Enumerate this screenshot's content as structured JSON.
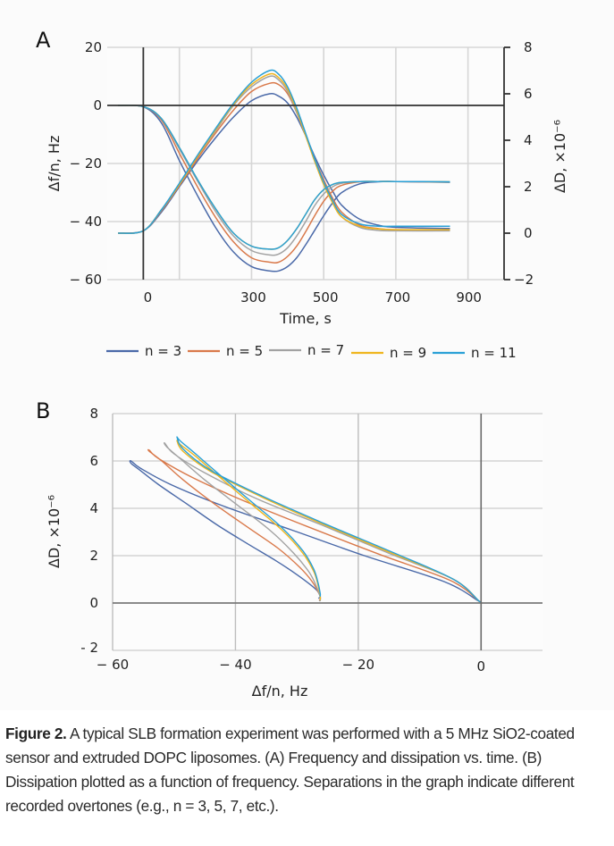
{
  "figure": {
    "caption_label": "Figure 2.",
    "caption_text": " A typical SLB formation experiment was performed with a 5 MHz SiO2-coated sensor and extruded DOPC liposomes. (A) Frequency and dissipation vs. time. (B) Dissipation plotted as a function of frequency. Separations in the graph indicate different recorded overtones (e.g., n = 3, 5, 7, etc.)."
  },
  "chart_data": [
    {
      "panel": "A",
      "type": "line",
      "title": "",
      "xlabel": "Time, s",
      "ylabel": "Δf/n, Hz",
      "y2label": "ΔD, ×10⁻⁶",
      "xlim": [
        -100,
        1000
      ],
      "ylim": [
        -60,
        20
      ],
      "y2lim": [
        -2,
        8
      ],
      "x_gridlines": [
        100,
        300,
        500,
        700,
        900
      ],
      "x_ticks": [
        {
          "value": 0,
          "label": "0"
        },
        {
          "value": 300,
          "label": "300"
        },
        {
          "value": 500,
          "label": "500"
        },
        {
          "value": 700,
          "label": "700"
        },
        {
          "value": 900,
          "label": "900"
        }
      ],
      "y_ticks": [
        {
          "value": 20,
          "label": "20"
        },
        {
          "value": 0,
          "label": "0"
        },
        {
          "value": -20,
          "label": "− 20"
        },
        {
          "value": -40,
          "label": "− 40"
        },
        {
          "value": -60,
          "label": "− 60"
        }
      ],
      "y2_ticks": [
        {
          "value": 8,
          "label": "8"
        },
        {
          "value": 6,
          "label": "6"
        },
        {
          "value": 4,
          "label": "4"
        },
        {
          "value": 2,
          "label": "2"
        },
        {
          "value": 0,
          "label": "0"
        },
        {
          "value": -2,
          "label": "−2"
        }
      ],
      "grid": true,
      "legend_position": "bottom",
      "time": [
        -70,
        0,
        50,
        100,
        150,
        200,
        250,
        300,
        350,
        375,
        400,
        425,
        450,
        475,
        500,
        525,
        550,
        600,
        650,
        700,
        850
      ],
      "series": [
        {
          "name": "n = 3",
          "color": "#4a69a8",
          "df": [
            0,
            -0.5,
            -6,
            -19,
            -31,
            -42,
            -50.5,
            -55.5,
            -57,
            -57,
            -55.5,
            -52.5,
            -48,
            -43,
            -38,
            -33.5,
            -30,
            -27,
            -26.3,
            -26.2,
            -26.5
          ],
          "dD": [
            0,
            0.1,
            0.9,
            2.0,
            3.1,
            4.1,
            5.0,
            5.7,
            6.0,
            5.9,
            5.6,
            5.0,
            4.2,
            3.3,
            2.5,
            1.8,
            1.2,
            0.6,
            0.35,
            0.25,
            0.2
          ]
        },
        {
          "name": "n = 5",
          "color": "#d9794a",
          "df": [
            0,
            -0.4,
            -5,
            -16.5,
            -28,
            -38.5,
            -47,
            -52.5,
            -54,
            -54,
            -52,
            -48.5,
            -43.5,
            -38,
            -33,
            -29.5,
            -27.5,
            -26.3,
            -26.2,
            -26.2,
            -26.4
          ],
          "dD": [
            0,
            0.1,
            0.95,
            2.05,
            3.2,
            4.3,
            5.3,
            6.1,
            6.45,
            6.4,
            6.0,
            5.2,
            4.2,
            3.2,
            2.3,
            1.5,
            0.9,
            0.35,
            0.2,
            0.15,
            0.12
          ]
        },
        {
          "name": "n = 7",
          "color": "#a2a2a2",
          "df": [
            0,
            -0.4,
            -4.5,
            -15,
            -26,
            -36.5,
            -45,
            -50,
            -51.5,
            -51.2,
            -49,
            -45,
            -40,
            -34.5,
            -30.5,
            -28,
            -26.8,
            -26.2,
            -26.2,
            -26.2,
            -26.4
          ],
          "dD": [
            0,
            0.1,
            1.0,
            2.1,
            3.3,
            4.4,
            5.5,
            6.3,
            6.75,
            6.6,
            6.1,
            5.2,
            4.2,
            3.1,
            2.1,
            1.3,
            0.7,
            0.25,
            0.12,
            0.1,
            0.1
          ]
        },
        {
          "name": "n = 9",
          "color": "#efb51e",
          "df": [
            0,
            -0.4,
            -4.5,
            -14.5,
            -25.5,
            -35.5,
            -44,
            -48.5,
            -49.5,
            -49,
            -46.5,
            -42.5,
            -37.5,
            -32.5,
            -29,
            -27.2,
            -26.5,
            -26.2,
            -26.2,
            -26.2,
            -26.3
          ],
          "dD": [
            0,
            0.1,
            1.0,
            2.1,
            3.3,
            4.45,
            5.55,
            6.4,
            6.85,
            6.7,
            6.2,
            5.3,
            4.2,
            3.1,
            2.1,
            1.3,
            0.7,
            0.3,
            0.18,
            0.15,
            0.15
          ]
        },
        {
          "name": "n = 11",
          "color": "#2aa0d6",
          "df": [
            0,
            -0.4,
            -4.5,
            -14.5,
            -25.5,
            -35.5,
            -44,
            -48.5,
            -49.5,
            -49,
            -46.5,
            -42.5,
            -37.5,
            -32.5,
            -29,
            -27.2,
            -26.5,
            -26.2,
            -26.2,
            -26.2,
            -26.3
          ],
          "dD": [
            0,
            0.1,
            1.0,
            2.15,
            3.35,
            4.5,
            5.6,
            6.5,
            7.0,
            6.85,
            6.3,
            5.4,
            4.3,
            3.2,
            2.2,
            1.4,
            0.8,
            0.4,
            0.3,
            0.3,
            0.3
          ]
        }
      ]
    },
    {
      "panel": "B",
      "type": "line",
      "title": "",
      "xlabel": "Δf/n, Hz",
      "ylabel": "ΔD, ×10⁻⁶",
      "xlim": [
        -60,
        10
      ],
      "ylim": [
        -2,
        8
      ],
      "x_ticks": [
        {
          "value": -60,
          "label": "− 60"
        },
        {
          "value": -40,
          "label": "− 40"
        },
        {
          "value": -20,
          "label": "− 20"
        },
        {
          "value": 0,
          "label": "0"
        }
      ],
      "y_ticks": [
        {
          "value": 8,
          "label": "8"
        },
        {
          "value": 6,
          "label": "6"
        },
        {
          "value": 4,
          "label": "4"
        },
        {
          "value": 2,
          "label": "2"
        },
        {
          "value": 0,
          "label": "0"
        },
        {
          "value": -2,
          "label": "- 2"
        }
      ],
      "grid": true,
      "legend_position": "none",
      "series_note": "Parametric plot of ΔD vs Δf/n using the same time-series as panel A",
      "series": [
        {
          "name": "n = 3",
          "color": "#4a69a8",
          "points": [
            [
              0,
              0
            ],
            [
              -0.5,
              0.1
            ],
            [
              -6,
              0.9
            ],
            [
              -19,
              2.0
            ],
            [
              -31,
              3.1
            ],
            [
              -42,
              4.1
            ],
            [
              -50.5,
              5.0
            ],
            [
              -55.5,
              5.7
            ],
            [
              -57,
              6.0
            ],
            [
              -57,
              5.9
            ],
            [
              -55.5,
              5.6
            ],
            [
              -52.5,
              5.0
            ],
            [
              -48,
              4.2
            ],
            [
              -43,
              3.3
            ],
            [
              -38,
              2.5
            ],
            [
              -33.5,
              1.8
            ],
            [
              -30,
              1.2
            ],
            [
              -27,
              0.6
            ],
            [
              -26.3,
              0.35
            ],
            [
              -26.2,
              0.25
            ],
            [
              -26.5,
              0.2
            ]
          ]
        },
        {
          "name": "n = 5",
          "color": "#d9794a",
          "points": [
            [
              0,
              0
            ],
            [
              -0.4,
              0.1
            ],
            [
              -5,
              0.95
            ],
            [
              -16.5,
              2.05
            ],
            [
              -28,
              3.2
            ],
            [
              -38.5,
              4.3
            ],
            [
              -47,
              5.3
            ],
            [
              -52.5,
              6.1
            ],
            [
              -54,
              6.45
            ],
            [
              -54,
              6.4
            ],
            [
              -52,
              6.0
            ],
            [
              -48.5,
              5.2
            ],
            [
              -43.5,
              4.2
            ],
            [
              -38,
              3.2
            ],
            [
              -33,
              2.3
            ],
            [
              -29.5,
              1.5
            ],
            [
              -27.5,
              0.9
            ],
            [
              -26.3,
              0.35
            ],
            [
              -26.2,
              0.2
            ],
            [
              -26.2,
              0.15
            ],
            [
              -26.4,
              0.12
            ]
          ]
        },
        {
          "name": "n = 7",
          "color": "#a2a2a2",
          "points": [
            [
              0,
              0
            ],
            [
              -0.4,
              0.1
            ],
            [
              -4.5,
              1.0
            ],
            [
              -15,
              2.1
            ],
            [
              -26,
              3.3
            ],
            [
              -36.5,
              4.4
            ],
            [
              -45,
              5.5
            ],
            [
              -50,
              6.3
            ],
            [
              -51.5,
              6.75
            ],
            [
              -51.2,
              6.6
            ],
            [
              -49,
              6.1
            ],
            [
              -45,
              5.2
            ],
            [
              -40,
              4.2
            ],
            [
              -34.5,
              3.1
            ],
            [
              -30.5,
              2.1
            ],
            [
              -28,
              1.3
            ],
            [
              -26.8,
              0.7
            ],
            [
              -26.2,
              0.25
            ],
            [
              -26.2,
              0.12
            ],
            [
              -26.2,
              0.1
            ],
            [
              -26.4,
              0.1
            ]
          ]
        },
        {
          "name": "n = 9",
          "color": "#efb51e",
          "points": [
            [
              0,
              0
            ],
            [
              -0.4,
              0.1
            ],
            [
              -4.5,
              1.0
            ],
            [
              -14.5,
              2.1
            ],
            [
              -25.5,
              3.3
            ],
            [
              -35.5,
              4.45
            ],
            [
              -44,
              5.55
            ],
            [
              -48.5,
              6.4
            ],
            [
              -49.5,
              6.85
            ],
            [
              -49,
              6.7
            ],
            [
              -46.5,
              6.2
            ],
            [
              -42.5,
              5.3
            ],
            [
              -37.5,
              4.2
            ],
            [
              -32.5,
              3.1
            ],
            [
              -29,
              2.1
            ],
            [
              -27.2,
              1.3
            ],
            [
              -26.5,
              0.7
            ],
            [
              -26.2,
              0.3
            ],
            [
              -26.2,
              0.18
            ],
            [
              -26.2,
              0.15
            ],
            [
              -26.3,
              0.15
            ]
          ]
        },
        {
          "name": "n = 11",
          "color": "#2aa0d6",
          "points": [
            [
              0,
              0
            ],
            [
              -0.4,
              0.1
            ],
            [
              -4.5,
              1.0
            ],
            [
              -14.5,
              2.15
            ],
            [
              -25.5,
              3.35
            ],
            [
              -35.5,
              4.5
            ],
            [
              -44,
              5.6
            ],
            [
              -48.5,
              6.5
            ],
            [
              -49.5,
              7.0
            ],
            [
              -49,
              6.85
            ],
            [
              -46.5,
              6.3
            ],
            [
              -42.5,
              5.4
            ],
            [
              -37.5,
              4.3
            ],
            [
              -32.5,
              3.2
            ],
            [
              -29,
              2.2
            ],
            [
              -27.2,
              1.4
            ],
            [
              -26.5,
              0.8
            ],
            [
              -26.2,
              0.4
            ],
            [
              -26.2,
              0.3
            ],
            [
              -26.2,
              0.3
            ],
            [
              -26.3,
              0.3
            ]
          ]
        }
      ]
    }
  ],
  "panels": {
    "a_letter": "A",
    "b_letter": "B"
  },
  "legend": [
    {
      "label": "n = 3"
    },
    {
      "label": "n = 5"
    },
    {
      "label": "n = 7"
    },
    {
      "label": "n = 9"
    },
    {
      "label": "n = 11"
    }
  ]
}
